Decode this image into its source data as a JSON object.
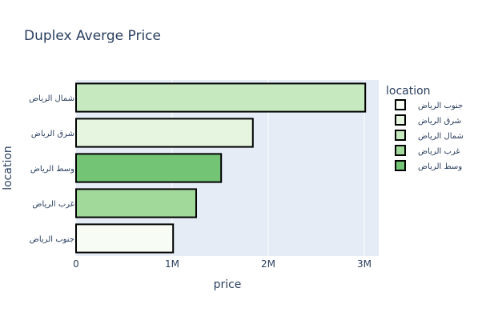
{
  "chart_data": {
    "type": "bar",
    "orientation": "horizontal",
    "title": "Duplex Averge Price",
    "xlabel": "price",
    "ylabel": "location",
    "xlim": [
      0,
      3150000
    ],
    "x_ticks": [
      {
        "value": 0,
        "label": "0"
      },
      {
        "value": 1000000,
        "label": "1M"
      },
      {
        "value": 2000000,
        "label": "2M"
      },
      {
        "value": 3000000,
        "label": "3M"
      }
    ],
    "grid": true,
    "legend": {
      "title": "location",
      "placement": "right",
      "entries": [
        "جنوب الرياض",
        "شرق الرياض",
        "شمال الرياض",
        "غرب الرياض",
        "وسط الرياض"
      ]
    },
    "categories_top_to_bottom": [
      "شمال الرياض",
      "شرق الرياض",
      "وسط الرياض",
      "غرب الرياض",
      "جنوب الرياض"
    ],
    "series": [
      {
        "name": "جنوب الرياض",
        "category": "جنوب الرياض",
        "value": 1010000,
        "color": "#f7fcf5"
      },
      {
        "name": "شرق الرياض",
        "category": "شرق الرياض",
        "value": 1840000,
        "color": "#e5f5e0"
      },
      {
        "name": "شمال الرياض",
        "category": "شمال الرياض",
        "value": 3010000,
        "color": "#c7e9c0"
      },
      {
        "name": "غرب الرياض",
        "category": "غرب الرياض",
        "value": 1250000,
        "color": "#a1d99b"
      },
      {
        "name": "وسط الرياض",
        "category": "وسط الرياض",
        "value": 1510000,
        "color": "#74c476"
      }
    ],
    "colors": {
      "plot_background": "#e5ecf6",
      "bar_outline": "#000000",
      "text": "#2a3f5f"
    }
  }
}
